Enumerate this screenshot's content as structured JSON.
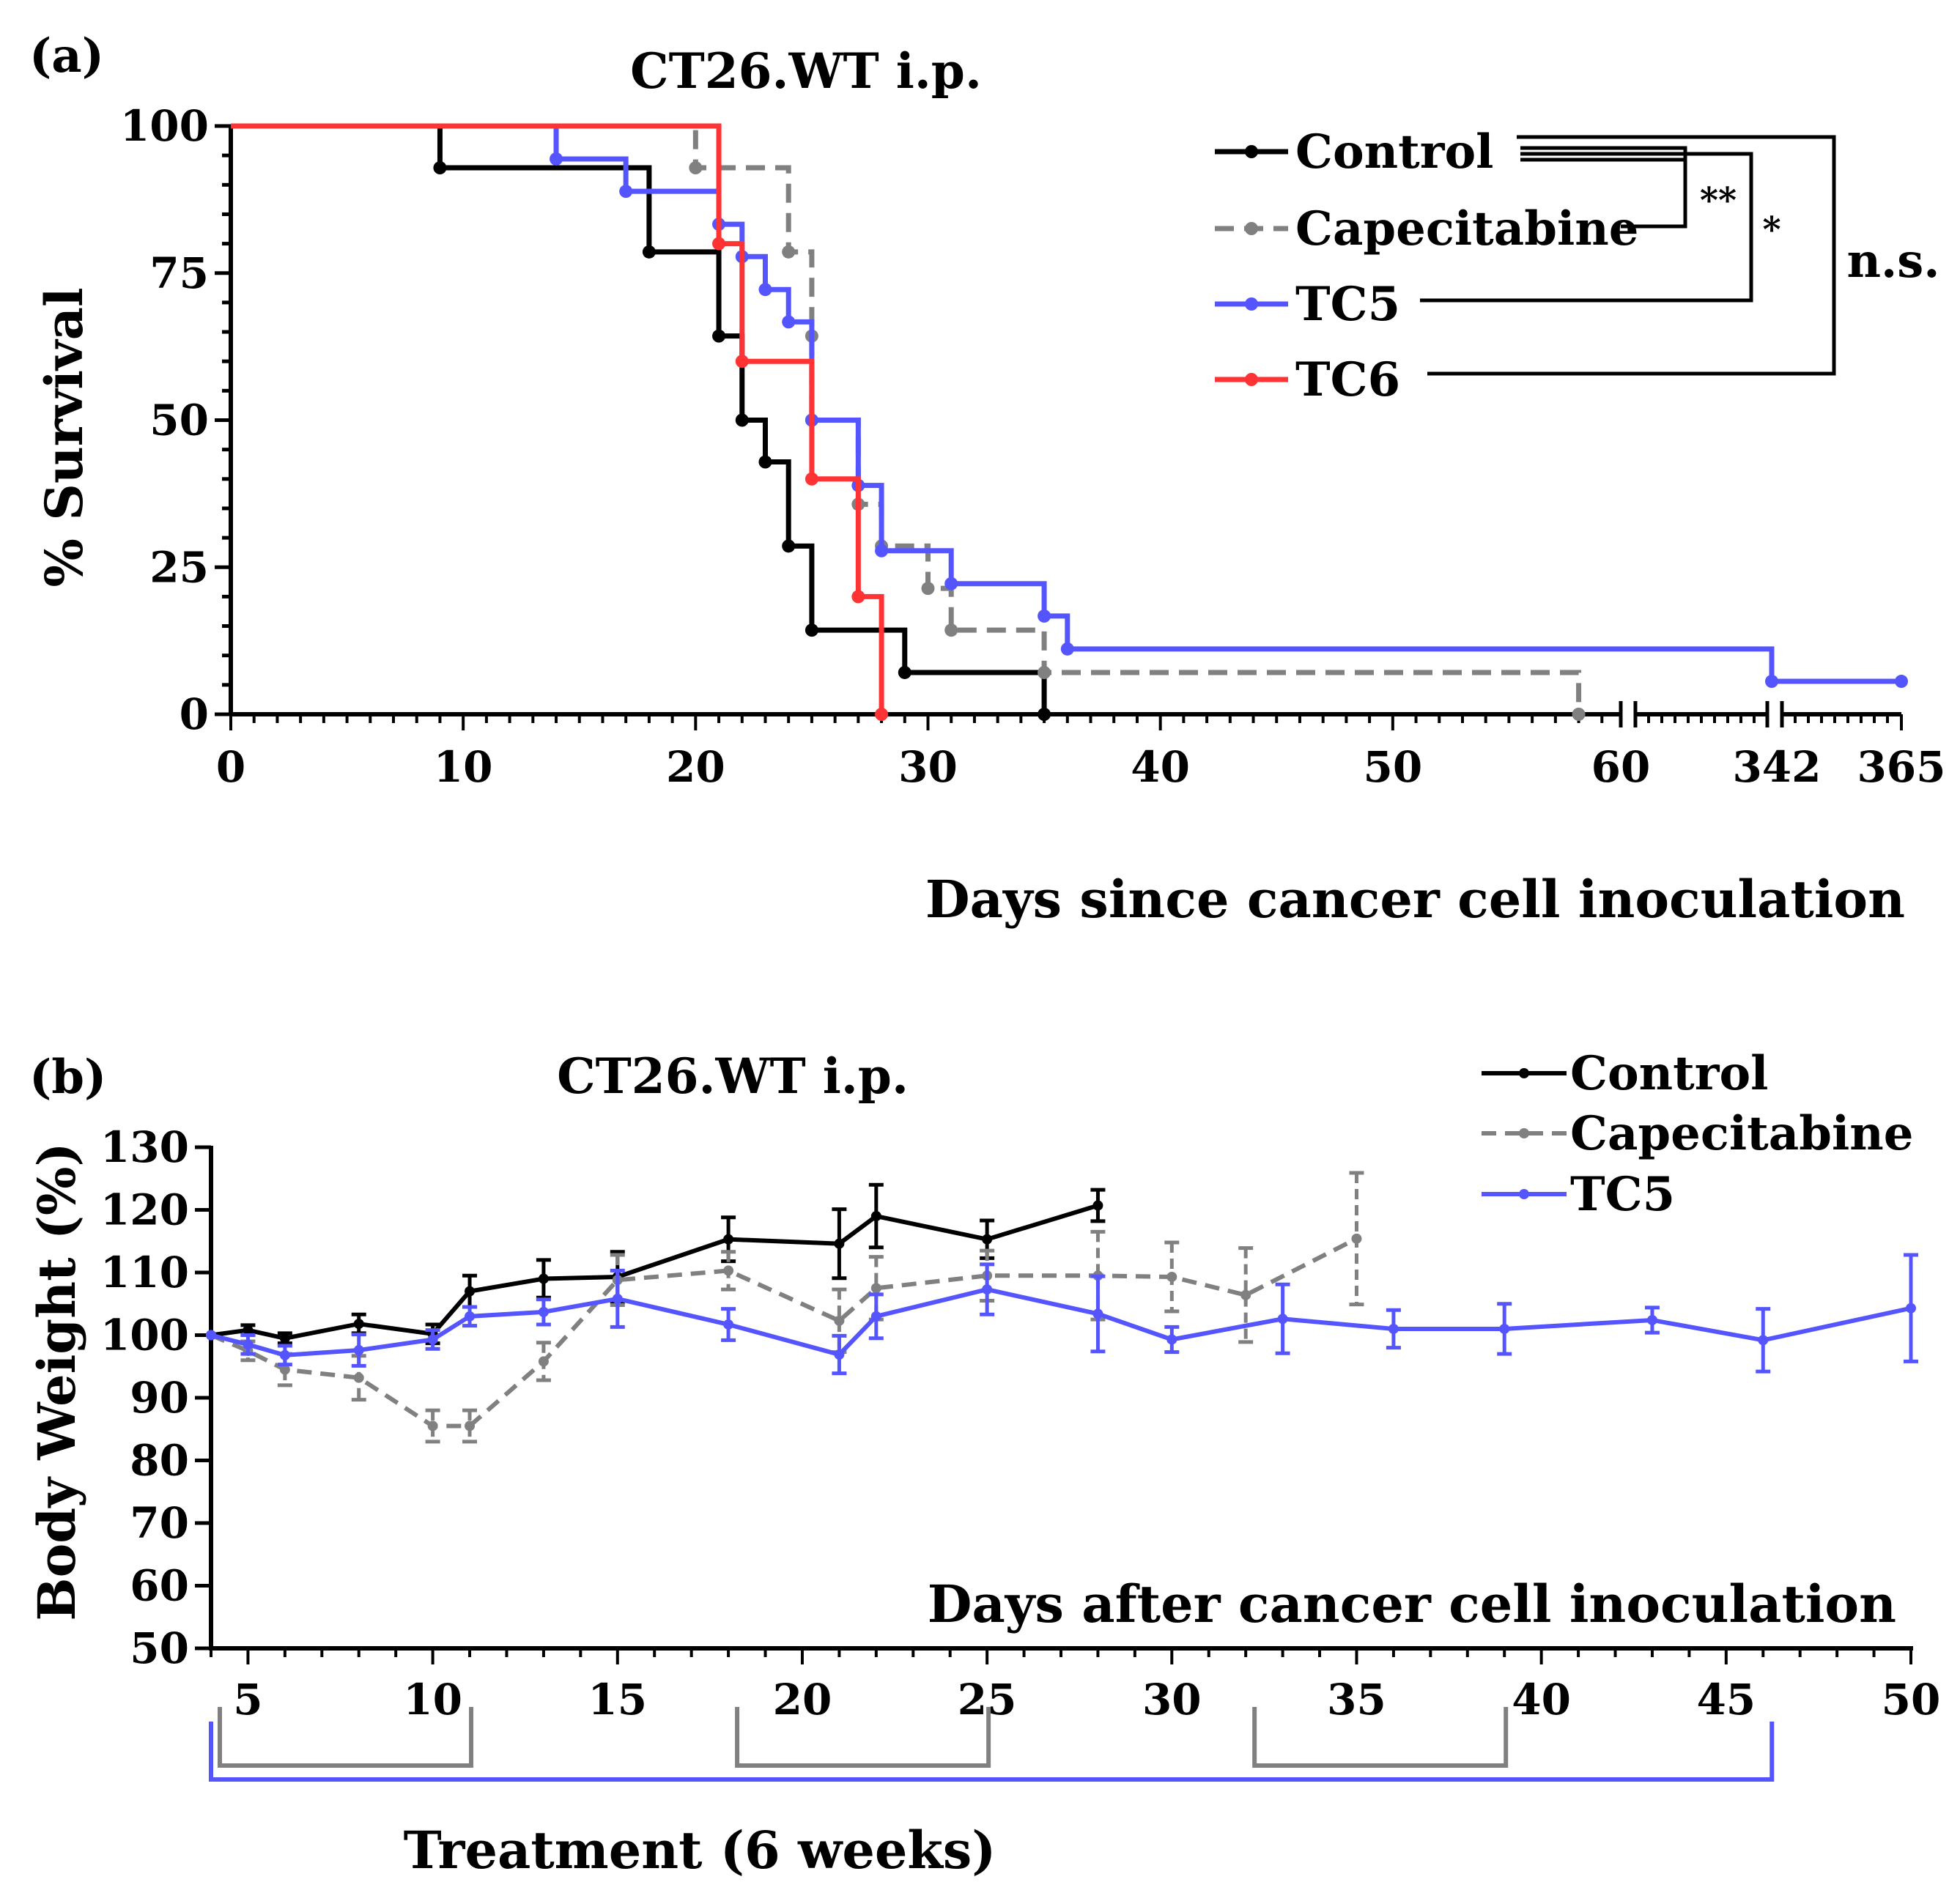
{
  "chart_data": [
    {
      "panel": "(a)",
      "type": "line",
      "subtype": "kaplan-meier step",
      "title": "CT26.WT i.p.",
      "xlabel": "Days since cancer cell inoculation",
      "ylabel": "% Survival",
      "ylim": [
        0,
        100
      ],
      "yticks": [
        "0",
        "25",
        "50",
        "75",
        "100"
      ],
      "xticks": [
        "0",
        "10",
        "20",
        "30",
        "40",
        "50",
        "60",
        "342",
        "365"
      ],
      "x_axis_breaks": [
        "60-342",
        "342-365"
      ],
      "series": [
        {
          "name": "Control",
          "color": "#000000",
          "dash": false,
          "points": [
            [
              0,
              100
            ],
            [
              9,
              92.9
            ],
            [
              18,
              78.6
            ],
            [
              21,
              64.3
            ],
            [
              22,
              50
            ],
            [
              23,
              42.9
            ],
            [
              24,
              28.6
            ],
            [
              25,
              14.3
            ],
            [
              29,
              7.1
            ],
            [
              35,
              0
            ]
          ]
        },
        {
          "name": "Capecitabine",
          "color": "#808080",
          "dash": true,
          "points": [
            [
              0,
              100
            ],
            [
              20,
              92.9
            ],
            [
              24,
              78.6
            ],
            [
              25,
              64.3
            ],
            [
              25,
              50
            ],
            [
              27,
              35.7
            ],
            [
              28,
              28.6
            ],
            [
              30,
              21.4
            ],
            [
              31,
              14.3
            ],
            [
              35,
              7.1
            ],
            [
              58,
              0
            ]
          ]
        },
        {
          "name": "TC5",
          "color": "#5555ff",
          "dash": false,
          "points": [
            [
              0,
              100
            ],
            [
              14,
              94.4
            ],
            [
              17,
              88.9
            ],
            [
              21,
              83.3
            ],
            [
              22,
              77.8
            ],
            [
              23,
              72.2
            ],
            [
              24,
              66.7
            ],
            [
              25,
              50
            ],
            [
              27,
              38.9
            ],
            [
              28,
              27.8
            ],
            [
              31,
              22.2
            ],
            [
              35,
              16.7
            ],
            [
              36,
              11.1
            ],
            [
              342,
              5.6
            ],
            [
              365,
              5.6
            ]
          ]
        },
        {
          "name": "TC6",
          "color": "#ff3333",
          "dash": false,
          "points": [
            [
              0,
              100
            ],
            [
              21,
              80
            ],
            [
              22,
              60
            ],
            [
              25,
              40
            ],
            [
              27,
              20
            ],
            [
              28,
              0
            ]
          ]
        }
      ],
      "significance": [
        {
          "pair": [
            "Control",
            "Capecitabine"
          ],
          "label": "**"
        },
        {
          "pair": [
            "Control",
            "TC5"
          ],
          "label": "*"
        },
        {
          "pair": [
            "Control",
            "TC6"
          ],
          "label": "n.s."
        }
      ],
      "legend_position": "top-right"
    },
    {
      "panel": "(b)",
      "type": "line",
      "subtype": "line with error bars",
      "title": "CT26.WT i.p.",
      "xlabel": "Days after cancer cell inoculation",
      "ylabel": "Body Weight (%)",
      "ylim": [
        50,
        130
      ],
      "xlim": [
        4,
        50
      ],
      "yticks": [
        "50",
        "60",
        "70",
        "80",
        "90",
        "100",
        "110",
        "120",
        "130"
      ],
      "xticks": [
        "5",
        "10",
        "15",
        "20",
        "25",
        "30",
        "35",
        "40",
        "45",
        "50"
      ],
      "series": [
        {
          "name": "Control",
          "color": "#000000",
          "dash": false,
          "points": [
            [
              4,
              100,
              0
            ],
            [
              5,
              100.8,
              0.8
            ],
            [
              6,
              99.5,
              0.8
            ],
            [
              8,
              101.8,
              1.5
            ],
            [
              10,
              100.2,
              1.5
            ],
            [
              11,
              107,
              2.5
            ],
            [
              13,
              109,
              3
            ],
            [
              15,
              109.3,
              4
            ],
            [
              18,
              115.3,
              3.5
            ],
            [
              21,
              114.6,
              5.5
            ],
            [
              22,
              119,
              5
            ],
            [
              25,
              115.3,
              3
            ],
            [
              28,
              120.7,
              2.5
            ]
          ]
        },
        {
          "name": "Capecitabine",
          "color": "#808080",
          "dash": true,
          "points": [
            [
              4,
              100,
              0
            ],
            [
              5,
              97.5,
              1.5
            ],
            [
              6,
              94.5,
              2.5
            ],
            [
              8,
              93.2,
              3.5
            ],
            [
              10,
              85.5,
              2.5
            ],
            [
              11,
              85.5,
              2.5
            ],
            [
              13,
              95.8,
              3
            ],
            [
              15,
              108.8,
              4
            ],
            [
              18,
              110.3,
              3
            ],
            [
              21,
              102.3,
              5
            ],
            [
              22,
              107.5,
              5
            ],
            [
              25,
              109.5,
              4
            ],
            [
              28,
              109.5,
              7
            ],
            [
              30,
              109.3,
              5.5
            ],
            [
              32,
              106.4,
              7.5
            ],
            [
              35,
              115.4,
              10.5
            ]
          ]
        },
        {
          "name": "TC5",
          "color": "#5555ff",
          "dash": false,
          "points": [
            [
              4,
              100,
              0
            ],
            [
              5,
              98.5,
              1.5
            ],
            [
              6,
              96.8,
              1.5
            ],
            [
              8,
              97.6,
              2.5
            ],
            [
              10,
              99.3,
              1.5
            ],
            [
              11,
              103,
              1.5
            ],
            [
              13,
              103.7,
              2
            ],
            [
              15,
              105.8,
              4.5
            ],
            [
              18,
              101.7,
              2.5
            ],
            [
              21,
              96.9,
              3
            ],
            [
              22,
              103,
              3.5
            ],
            [
              25,
              107.3,
              4
            ],
            [
              28,
              103.4,
              6
            ],
            [
              30,
              99.3,
              2
            ],
            [
              33,
              102.6,
              5.5
            ],
            [
              36,
              101,
              3
            ],
            [
              39,
              101,
              4
            ],
            [
              43,
              102.4,
              2
            ],
            [
              46,
              99.2,
              5
            ],
            [
              50,
              104.3,
              8.5
            ]
          ]
        }
      ],
      "treatment_label": "Treatment (6 weeks)",
      "treatment_periods": {
        "TC5": [
          [
            4,
            46
          ]
        ],
        "Capecitabine": [
          [
            4,
            11
          ],
          [
            18,
            25
          ],
          [
            32,
            39
          ]
        ]
      },
      "legend_position": "top-right"
    }
  ]
}
